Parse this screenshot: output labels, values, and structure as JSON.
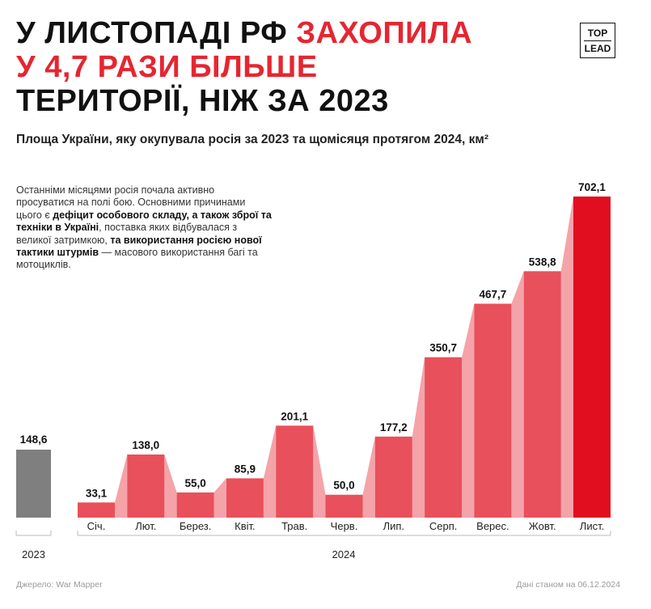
{
  "headline": {
    "part1": "У листопаді РФ ",
    "part2": "захопила",
    "part3": "у 4,7 рази більше",
    "part4": "території, ніж за 2023"
  },
  "logo": {
    "line1": "TOP",
    "line2": "LEAD"
  },
  "subtitle": "Площа України, яку окупувала росія за 2023 та щомісяця протягом 2024, км²",
  "note": {
    "t1": "Останніми місяцями росія почала активно просуватися на полі бою. Основними причинами цього є ",
    "b1": "дефіцит особового складу, а також зброї та техніки в Україні",
    "t2": ", поставка яких відбувалася з великої затримкою, ",
    "b2": "та використання росією нової тактики штурмів",
    "t3": " — масового використання багі та мотоциклів."
  },
  "colors": {
    "bar": "#e8505b",
    "bar_last": "#e00e1e",
    "bridge": "#f4a3a9",
    "bar_2023": "#7f7f7f",
    "accent": "#e52631"
  },
  "chart_data": {
    "type": "bar",
    "unit": "км²",
    "baseline": {
      "category": "2023",
      "label": "148,6",
      "value": 148.6
    },
    "group_label": "2024",
    "categories": [
      "Січ.",
      "Лют.",
      "Берез.",
      "Квіт.",
      "Трав.",
      "Черв.",
      "Лип.",
      "Серп.",
      "Верес.",
      "Жовт.",
      "Лист."
    ],
    "values": [
      33.1,
      138.0,
      55.0,
      85.9,
      201.1,
      50.0,
      177.2,
      350.7,
      467.7,
      538.8,
      702.1
    ],
    "labels": [
      "33,1",
      "138,0",
      "55,0",
      "85,9",
      "201,1",
      "50,0",
      "177,2",
      "350,7",
      "467,7",
      "538,8",
      "702,1"
    ],
    "ylim": [
      0,
      702.1
    ]
  },
  "footer": {
    "source": "Джерело: War Mapper",
    "date": "Дані станом на 06.12.2024"
  }
}
